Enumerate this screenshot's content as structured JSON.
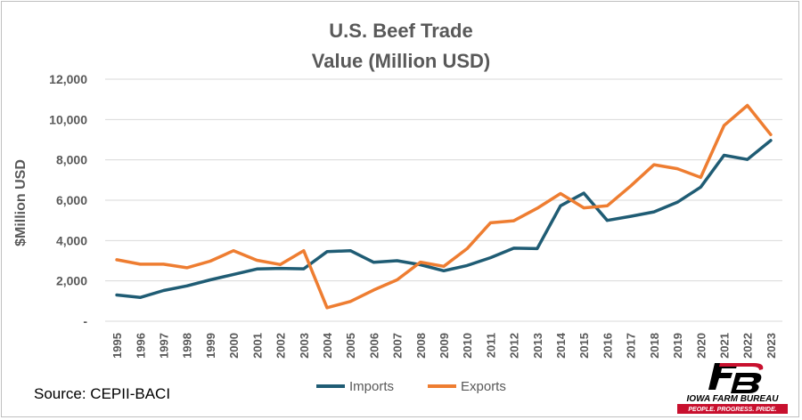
{
  "chart_data": {
    "type": "line",
    "title": [
      "U.S. Beef Trade",
      "Value (Million USD)"
    ],
    "ylabel": "$Million USD",
    "xlabel": "",
    "ylim": [
      0,
      12000
    ],
    "yticks": [
      0,
      2000,
      4000,
      6000,
      8000,
      10000,
      12000
    ],
    "ytick_labels": [
      "-",
      "2,000",
      "4,000",
      "6,000",
      "8,000",
      "10,000",
      "12,000"
    ],
    "grid": true,
    "legend_position": "bottom",
    "x": [
      "1995",
      "1996",
      "1997",
      "1998",
      "1999",
      "2000",
      "2001",
      "2002",
      "2003",
      "2004",
      "2005",
      "2006",
      "2007",
      "2008",
      "2009",
      "2010",
      "2011",
      "2012",
      "2013",
      "2014",
      "2015",
      "2016",
      "2017",
      "2018",
      "2019",
      "2020",
      "2021",
      "2022",
      "2023"
    ],
    "series": [
      {
        "name": "Imports",
        "color": "#1f5c74",
        "values": [
          1300,
          1180,
          1520,
          1750,
          2050,
          2320,
          2590,
          2620,
          2600,
          3450,
          3500,
          2920,
          3000,
          2800,
          2500,
          2760,
          3150,
          3620,
          3600,
          5720,
          6350,
          5000,
          5200,
          5420,
          5900,
          6650,
          8230,
          8020,
          8960
        ]
      },
      {
        "name": "Exports",
        "color": "#ee7d31",
        "values": [
          3050,
          2830,
          2830,
          2650,
          2980,
          3500,
          3020,
          2810,
          3500,
          670,
          980,
          1550,
          2050,
          2930,
          2720,
          3600,
          4880,
          4980,
          5600,
          6330,
          5620,
          5720,
          6700,
          7760,
          7560,
          7130,
          9700,
          10700,
          9250
        ]
      }
    ]
  },
  "source": "Source: CEPII-BACI",
  "logo": {
    "mark": "FB",
    "name": "IOWA FARM BUREAU",
    "tagline": "PEOPLE. PROGRESS. PRIDE."
  }
}
